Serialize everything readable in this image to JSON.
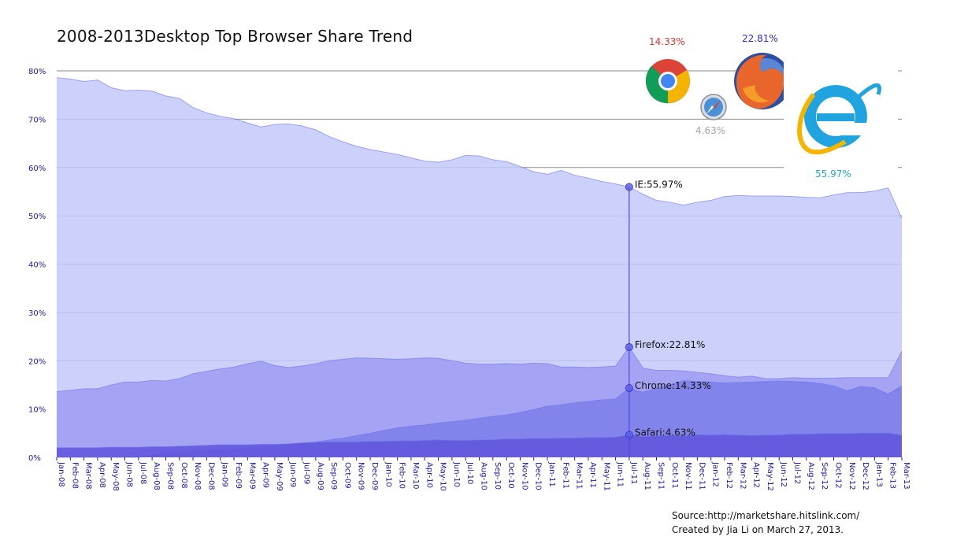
{
  "chart_data": {
    "type": "area",
    "title": "2008-2013Desktop Top Browser Share Trend",
    "ylim": [
      0,
      80
    ],
    "yticks": [
      "0%",
      "10%",
      "20%",
      "30%",
      "40%",
      "50%",
      "60%",
      "70%",
      "80%"
    ],
    "grid": true,
    "categories": [
      "Jan-08",
      "Feb-08",
      "Mar-08",
      "Apr-08",
      "May-08",
      "Jun-08",
      "Jul-08",
      "Aug-08",
      "Sep-08",
      "Oct-08",
      "Nov-08",
      "Dec-08",
      "Jan-09",
      "Feb-09",
      "Mar-09",
      "Apr-09",
      "May-09",
      "Jun-09",
      "Jul-09",
      "Aug-09",
      "Sep-09",
      "Oct-09",
      "Nov-09",
      "Dec-09",
      "Jan-10",
      "Feb-10",
      "Mar-10",
      "Apr-10",
      "May-10",
      "Jun-10",
      "Jul-10",
      "Aug-10",
      "Sep-10",
      "Oct-10",
      "Nov-10",
      "Dec-10",
      "Jan-11",
      "Feb-11",
      "Mar-11",
      "Apr-11",
      "May-11",
      "Jun-11",
      "Jul-11",
      "Aug-11",
      "Sep-11",
      "Oct-11",
      "Nov-11",
      "Dec-11",
      "Jan-12",
      "Feb-12",
      "Mar-12",
      "Apr-12",
      "May-12",
      "Jun-12",
      "Jul-12",
      "Aug-12",
      "Sep-12",
      "Oct-12",
      "Nov-12",
      "Dec-12",
      "Jan-13",
      "Feb-13",
      "Mar-13"
    ],
    "series": [
      {
        "name": "IE",
        "color": "#c3c9fb",
        "values": [
          78.6,
          78.3,
          77.8,
          78.1,
          76.5,
          75.9,
          76.0,
          75.8,
          74.8,
          74.3,
          72.4,
          71.3,
          70.6,
          70.1,
          69.2,
          68.4,
          68.9,
          69.0,
          68.6,
          67.8,
          66.4,
          65.3,
          64.4,
          63.7,
          63.2,
          62.7,
          62.0,
          61.3,
          61.1,
          61.6,
          62.5,
          62.4,
          61.6,
          61.2,
          60.2,
          59.1,
          58.6,
          59.4,
          58.4,
          57.8,
          57.1,
          56.6,
          55.97,
          54.5,
          53.2,
          52.8,
          52.2,
          52.8,
          53.2,
          54.0,
          54.2,
          54.1,
          54.1,
          54.1,
          54.0,
          53.8,
          53.7,
          54.3,
          54.8,
          54.8,
          55.1,
          55.8,
          49.5
        ]
      },
      {
        "name": "Firefox",
        "color": "#9c9bf2",
        "values": [
          13.6,
          13.9,
          14.2,
          14.2,
          15.0,
          15.6,
          15.6,
          15.9,
          15.8,
          16.3,
          17.3,
          17.8,
          18.3,
          18.7,
          19.4,
          19.9,
          19.0,
          18.6,
          18.9,
          19.4,
          20.0,
          20.3,
          20.6,
          20.5,
          20.4,
          20.3,
          20.4,
          20.6,
          20.5,
          20.0,
          19.5,
          19.3,
          19.3,
          19.4,
          19.3,
          19.5,
          19.4,
          18.7,
          18.7,
          18.6,
          18.7,
          18.9,
          22.81,
          18.5,
          18.0,
          18.0,
          17.9,
          17.6,
          17.3,
          16.9,
          16.6,
          16.8,
          16.3,
          16.3,
          16.5,
          16.4,
          16.4,
          16.4,
          16.5,
          16.5,
          16.5,
          16.5,
          22.0
        ]
      },
      {
        "name": "Chrome",
        "color": "#7e7eea",
        "values": [
          0,
          0,
          0,
          0,
          0,
          0,
          0,
          0.5,
          1.0,
          1.1,
          1.4,
          1.5,
          1.6,
          1.8,
          1.9,
          2.2,
          2.4,
          2.6,
          2.9,
          3.2,
          3.6,
          4.0,
          4.5,
          5.0,
          5.6,
          6.1,
          6.5,
          6.7,
          7.1,
          7.4,
          7.7,
          8.1,
          8.5,
          8.8,
          9.3,
          9.9,
          10.6,
          10.9,
          11.3,
          11.6,
          11.9,
          12.1,
          14.33,
          13.5,
          14.3,
          15.0,
          15.9,
          15.7,
          15.6,
          15.4,
          15.5,
          15.6,
          15.7,
          15.8,
          15.7,
          15.6,
          15.3,
          14.8,
          13.8,
          14.7,
          14.4,
          13.1,
          14.8
        ]
      },
      {
        "name": "Safari",
        "color": "#5f55dd",
        "values": [
          2.0,
          2.0,
          2.0,
          2.0,
          2.1,
          2.1,
          2.1,
          2.2,
          2.2,
          2.3,
          2.4,
          2.5,
          2.6,
          2.6,
          2.6,
          2.7,
          2.7,
          2.8,
          3.0,
          3.1,
          3.2,
          3.2,
          3.2,
          3.3,
          3.3,
          3.4,
          3.4,
          3.5,
          3.6,
          3.5,
          3.5,
          3.6,
          3.6,
          3.8,
          3.8,
          3.9,
          3.9,
          4.0,
          4.0,
          4.1,
          4.1,
          4.2,
          4.63,
          4.3,
          4.4,
          4.5,
          4.4,
          4.7,
          4.6,
          4.7,
          4.6,
          4.5,
          4.6,
          4.6,
          4.8,
          4.8,
          4.9,
          4.9,
          4.9,
          5.0,
          5.0,
          5.0,
          4.6
        ]
      }
    ],
    "annotations": [
      {
        "label": "IE:55.97%",
        "series": "IE",
        "category": "Jul-11"
      },
      {
        "label": "Firefox:22.81%",
        "series": "Firefox",
        "category": "Jul-11"
      },
      {
        "label": "Chrome:14.33%",
        "series": "Chrome",
        "category": "Jul-11"
      },
      {
        "label": "Safari:4.63%",
        "series": "Safari",
        "category": "Jul-11"
      }
    ]
  },
  "logos": {
    "chrome": {
      "pct": "14.33%",
      "color": "#e8312f"
    },
    "firefox": {
      "pct": "22.81%",
      "color": "#2a2adf"
    },
    "safari": {
      "pct": "4.63%",
      "color": "#a5a5a5"
    },
    "ie": {
      "pct": "55.97%",
      "color": "#22aadd"
    }
  },
  "source": {
    "line1": "Source:http://marketshare.hitslink.com/",
    "line2": "Created by Jia Li on March 27, 2013."
  }
}
